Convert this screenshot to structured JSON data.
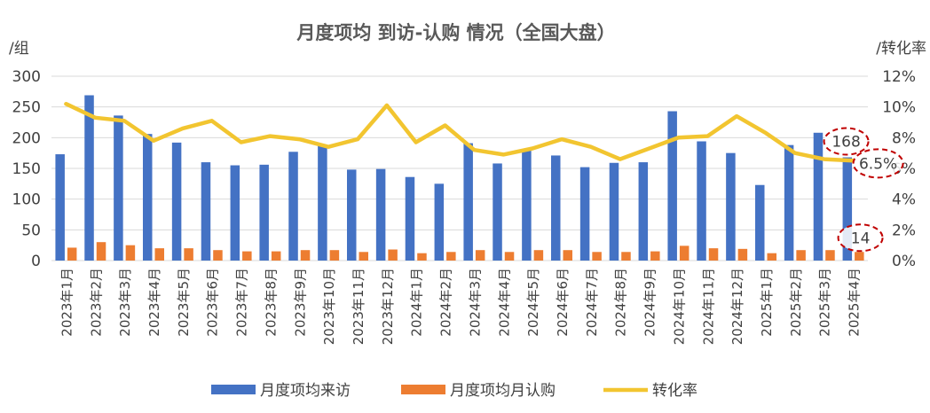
{
  "chart_data": {
    "type": "bar",
    "title": "月度项均  到访-认购  情况（全国大盘）",
    "y_left_unit": "/组",
    "y_right_unit": "/转化率",
    "ylim": [
      0,
      300
    ],
    "y_right_lim": [
      0,
      12
    ],
    "y_ticks": [
      "0",
      "50",
      "100",
      "150",
      "200",
      "250",
      "300"
    ],
    "y_right_ticks": [
      "0%",
      "2%",
      "4%",
      "6%",
      "8%",
      "10%",
      "12%"
    ],
    "grid": true,
    "legend_position": "bottom",
    "categories": [
      "2023年1月",
      "2023年2月",
      "2023年3月",
      "2023年4月",
      "2023年5月",
      "2023年6月",
      "2023年7月",
      "2023年8月",
      "2023年9月",
      "2023年10月",
      "2023年11月",
      "2023年12月",
      "2024年1月",
      "2024年2月",
      "2024年3月",
      "2024年4月",
      "2024年5月",
      "2024年6月",
      "2024年7月",
      "2024年8月",
      "2024年9月",
      "2024年10月",
      "2024年11月",
      "2024年12月",
      "2025年1月",
      "2025年2月",
      "2025年3月",
      "2025年4月"
    ],
    "series": [
      {
        "name": "月度项均来访",
        "type": "bar",
        "axis": "left",
        "color": "#4472C4",
        "values": [
          173,
          269,
          236,
          206,
          192,
          160,
          155,
          156,
          177,
          187,
          148,
          149,
          136,
          125,
          191,
          158,
          179,
          171,
          152,
          159,
          160,
          243,
          194,
          175,
          123,
          188,
          208,
          168
        ]
      },
      {
        "name": "月度项均月认购",
        "type": "bar",
        "axis": "left",
        "color": "#ED7D31",
        "values": [
          21,
          30,
          25,
          20,
          20,
          17,
          15,
          15,
          17,
          17,
          14,
          18,
          12,
          14,
          17,
          14,
          17,
          17,
          14,
          14,
          15,
          24,
          20,
          19,
          12,
          17,
          17,
          14
        ]
      },
      {
        "name": "转化率",
        "type": "line",
        "axis": "right",
        "color": "#F2C530",
        "values": [
          10.2,
          9.3,
          9.1,
          7.8,
          8.6,
          9.1,
          7.7,
          8.1,
          7.9,
          7.4,
          7.9,
          10.1,
          7.7,
          8.8,
          7.2,
          6.9,
          7.3,
          7.9,
          7.4,
          6.6,
          7.3,
          8.0,
          8.1,
          9.4,
          8.3,
          7.0,
          6.6,
          6.5
        ]
      }
    ],
    "annotations": [
      {
        "text": "168",
        "series": 0,
        "index": 27
      },
      {
        "text": "6.5%",
        "series": 2,
        "index": 27
      },
      {
        "text": "14",
        "series": 1,
        "index": 27
      }
    ]
  }
}
